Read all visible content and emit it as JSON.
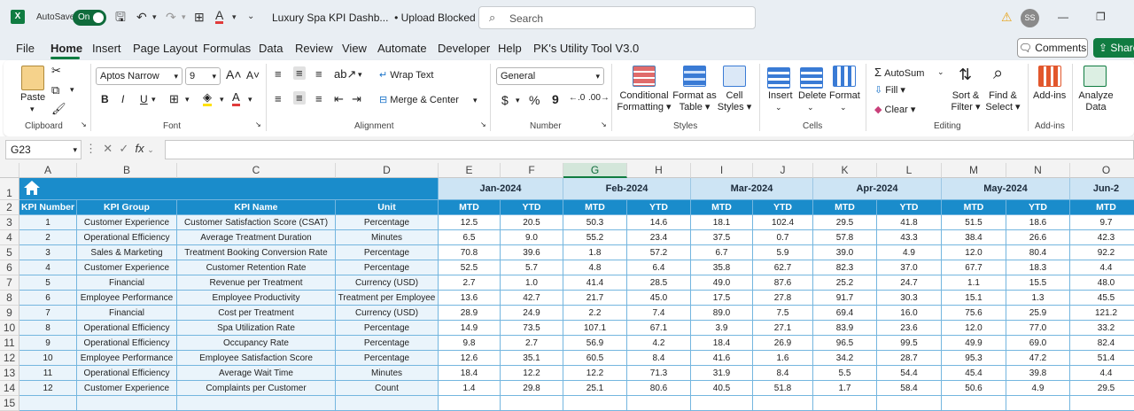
{
  "titlebar": {
    "logo": "X",
    "autosave_label": "AutoSave",
    "toggle": "On",
    "title": "Luxury Spa KPI Dashb...",
    "upload_status": "• Upload Blocked",
    "search_placeholder": "Search",
    "user_initials": "SS",
    "icons": [
      "save-icon",
      "undo-icon",
      "redo-icon",
      "table-icon",
      "font-color-icon",
      "more-icon",
      "warning-icon",
      "restore-window-icon"
    ]
  },
  "menu": {
    "items": [
      "File",
      "Home",
      "Insert",
      "Page Layout",
      "Formulas",
      "Data",
      "Review",
      "View",
      "Automate",
      "Developer",
      "Help",
      "PK's Utility Tool V3.0"
    ],
    "active": "Home",
    "comments": "Comments",
    "share": "Share"
  },
  "ribbon": {
    "clipboard": {
      "paste": "Paste",
      "label": "Clipboard"
    },
    "font": {
      "font_name": "Aptos Narrow",
      "font_size": "9",
      "bold": "B",
      "italic": "I",
      "underline": "U",
      "label": "Font",
      "accent": "#e03b3b",
      "highlight": "#ffe100"
    },
    "alignment": {
      "wrap": "Wrap Text",
      "merge": "Merge & Center",
      "label": "Alignment"
    },
    "number": {
      "format": "General",
      "currency": "$",
      "percent": "%",
      "comma": "9",
      "label": "Number"
    },
    "styles": {
      "conditional": "Conditional",
      "conditional2": "Formatting",
      "format_as": "Format as",
      "format_as2": "Table",
      "cell": "Cell",
      "cell2": "Styles",
      "label": "Styles"
    },
    "cells": {
      "insert": "Insert",
      "delete": "Delete",
      "format": "Format",
      "label": "Cells"
    },
    "editing": {
      "autosum": "AutoSum",
      "fill": "Fill",
      "clear": "Clear",
      "sort": "Sort &",
      "sort2": "Filter",
      "find": "Find &",
      "find2": "Select",
      "label": "Editing"
    },
    "addins": {
      "addins": "Add-ins",
      "label": "Add-ins",
      "analyze": "Analyze",
      "analyze2": "Data"
    }
  },
  "formula_bar": {
    "name_box": "G23",
    "fx": "fx",
    "value": ""
  },
  "sheet": {
    "columns": [
      "A",
      "B",
      "C",
      "D",
      "E",
      "F",
      "G",
      "H",
      "I",
      "J",
      "K",
      "L",
      "M",
      "N",
      "O"
    ],
    "selected_column": "G",
    "rows": [
      "1",
      "2",
      "3",
      "4",
      "5",
      "6",
      "7",
      "8",
      "9",
      "10",
      "11",
      "12",
      "13",
      "14",
      "15"
    ],
    "months": [
      "Jan-2024",
      "Feb-2024",
      "Mar-2024",
      "Apr-2024",
      "May-2024",
      "Jun-2"
    ],
    "headers": [
      "KPI Number",
      "KPI Group",
      "KPI Name",
      "Unit"
    ],
    "mtd": "MTD",
    "ytd": "YTD",
    "data": [
      [
        "1",
        "Customer Experience",
        "Customer Satisfaction Score (CSAT)",
        "Percentage",
        "12.5",
        "20.5",
        "50.3",
        "14.6",
        "18.1",
        "102.4",
        "29.5",
        "41.8",
        "51.5",
        "18.6",
        "9.7"
      ],
      [
        "2",
        "Operational Efficiency",
        "Average Treatment Duration",
        "Minutes",
        "6.5",
        "9.0",
        "55.2",
        "23.4",
        "37.5",
        "0.7",
        "57.8",
        "43.3",
        "38.4",
        "26.6",
        "42.3"
      ],
      [
        "3",
        "Sales & Marketing",
        "Treatment Booking Conversion Rate",
        "Percentage",
        "70.8",
        "39.6",
        "1.8",
        "57.2",
        "6.7",
        "5.9",
        "39.0",
        "4.9",
        "12.0",
        "80.4",
        "92.2"
      ],
      [
        "4",
        "Customer Experience",
        "Customer Retention Rate",
        "Percentage",
        "52.5",
        "5.7",
        "4.8",
        "6.4",
        "35.8",
        "62.7",
        "82.3",
        "37.0",
        "67.7",
        "18.3",
        "4.4"
      ],
      [
        "5",
        "Financial",
        "Revenue per Treatment",
        "Currency (USD)",
        "2.7",
        "1.0",
        "41.4",
        "28.5",
        "49.0",
        "87.6",
        "25.2",
        "24.7",
        "1.1",
        "15.5",
        "48.0"
      ],
      [
        "6",
        "Employee Performance",
        "Employee Productivity",
        "Treatment per Employee",
        "13.6",
        "42.7",
        "21.7",
        "45.0",
        "17.5",
        "27.8",
        "91.7",
        "30.3",
        "15.1",
        "1.3",
        "45.5"
      ],
      [
        "7",
        "Financial",
        "Cost per Treatment",
        "Currency (USD)",
        "28.9",
        "24.9",
        "2.2",
        "7.4",
        "89.0",
        "7.5",
        "69.4",
        "16.0",
        "75.6",
        "25.9",
        "121.2"
      ],
      [
        "8",
        "Operational Efficiency",
        "Spa Utilization Rate",
        "Percentage",
        "14.9",
        "73.5",
        "107.1",
        "67.1",
        "3.9",
        "27.1",
        "83.9",
        "23.6",
        "12.0",
        "77.0",
        "33.2"
      ],
      [
        "9",
        "Operational Efficiency",
        "Occupancy Rate",
        "Percentage",
        "9.8",
        "2.7",
        "56.9",
        "4.2",
        "18.4",
        "26.9",
        "96.5",
        "99.5",
        "49.9",
        "69.0",
        "82.4"
      ],
      [
        "10",
        "Employee Performance",
        "Employee Satisfaction Score",
        "Percentage",
        "12.6",
        "35.1",
        "60.5",
        "8.4",
        "41.6",
        "1.6",
        "34.2",
        "28.7",
        "95.3",
        "47.2",
        "51.4"
      ],
      [
        "11",
        "Operational Efficiency",
        "Average Wait Time",
        "Minutes",
        "18.4",
        "12.2",
        "12.2",
        "71.3",
        "31.9",
        "8.4",
        "5.5",
        "54.4",
        "45.4",
        "39.8",
        "4.4"
      ],
      [
        "12",
        "Customer Experience",
        "Complaints per Customer",
        "Count",
        "1.4",
        "29.8",
        "25.1",
        "80.6",
        "40.5",
        "51.8",
        "1.7",
        "58.4",
        "50.6",
        "4.9",
        "29.5"
      ]
    ]
  }
}
